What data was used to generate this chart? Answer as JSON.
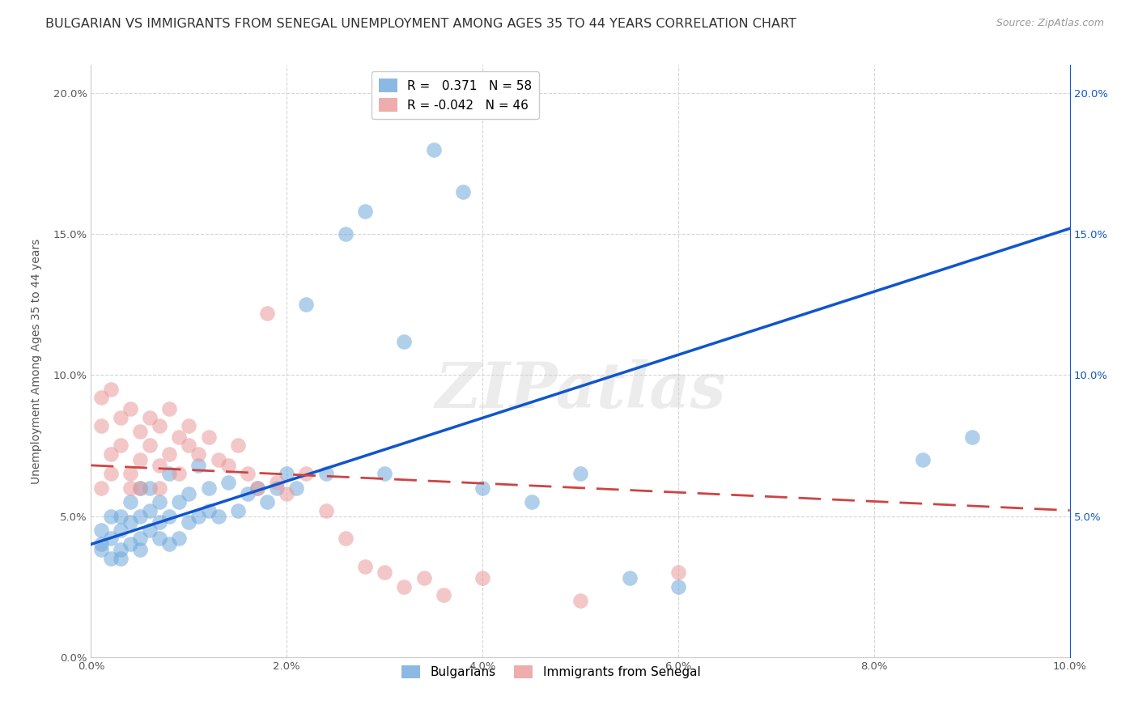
{
  "title": "BULGARIAN VS IMMIGRANTS FROM SENEGAL UNEMPLOYMENT AMONG AGES 35 TO 44 YEARS CORRELATION CHART",
  "source": "Source: ZipAtlas.com",
  "ylabel": "Unemployment Among Ages 35 to 44 years",
  "xlim": [
    0,
    0.1
  ],
  "ylim": [
    0,
    0.21
  ],
  "blue_R": "0.371",
  "blue_N": "58",
  "pink_R": "-0.042",
  "pink_N": "46",
  "legend_labels": [
    "Bulgarians",
    "Immigrants from Senegal"
  ],
  "blue_color": "#6fa8dc",
  "pink_color": "#ea9999",
  "blue_line_color": "#1155cc",
  "pink_line_color": "#cc4444",
  "watermark": "ZIPatlas",
  "blue_scatter_x": [
    0.001,
    0.001,
    0.001,
    0.002,
    0.002,
    0.002,
    0.003,
    0.003,
    0.003,
    0.003,
    0.004,
    0.004,
    0.004,
    0.005,
    0.005,
    0.005,
    0.005,
    0.006,
    0.006,
    0.006,
    0.007,
    0.007,
    0.007,
    0.008,
    0.008,
    0.008,
    0.009,
    0.009,
    0.01,
    0.01,
    0.011,
    0.011,
    0.012,
    0.012,
    0.013,
    0.014,
    0.015,
    0.016,
    0.017,
    0.018,
    0.019,
    0.02,
    0.021,
    0.022,
    0.024,
    0.026,
    0.028,
    0.03,
    0.032,
    0.035,
    0.038,
    0.04,
    0.045,
    0.05,
    0.055,
    0.06,
    0.085,
    0.09
  ],
  "blue_scatter_y": [
    0.04,
    0.038,
    0.045,
    0.035,
    0.042,
    0.05,
    0.038,
    0.045,
    0.05,
    0.035,
    0.04,
    0.048,
    0.055,
    0.042,
    0.038,
    0.05,
    0.06,
    0.045,
    0.052,
    0.06,
    0.042,
    0.048,
    0.055,
    0.04,
    0.05,
    0.065,
    0.042,
    0.055,
    0.048,
    0.058,
    0.05,
    0.068,
    0.052,
    0.06,
    0.05,
    0.062,
    0.052,
    0.058,
    0.06,
    0.055,
    0.06,
    0.065,
    0.06,
    0.125,
    0.065,
    0.15,
    0.158,
    0.065,
    0.112,
    0.18,
    0.165,
    0.06,
    0.055,
    0.065,
    0.028,
    0.025,
    0.07,
    0.078
  ],
  "pink_scatter_x": [
    0.001,
    0.001,
    0.001,
    0.002,
    0.002,
    0.002,
    0.003,
    0.003,
    0.004,
    0.004,
    0.004,
    0.005,
    0.005,
    0.005,
    0.006,
    0.006,
    0.007,
    0.007,
    0.007,
    0.008,
    0.008,
    0.009,
    0.009,
    0.01,
    0.01,
    0.011,
    0.012,
    0.013,
    0.014,
    0.015,
    0.016,
    0.017,
    0.018,
    0.019,
    0.02,
    0.022,
    0.024,
    0.026,
    0.028,
    0.03,
    0.032,
    0.034,
    0.036,
    0.04,
    0.05,
    0.06
  ],
  "pink_scatter_y": [
    0.082,
    0.06,
    0.092,
    0.072,
    0.095,
    0.065,
    0.085,
    0.075,
    0.088,
    0.065,
    0.06,
    0.08,
    0.07,
    0.06,
    0.085,
    0.075,
    0.082,
    0.068,
    0.06,
    0.088,
    0.072,
    0.078,
    0.065,
    0.082,
    0.075,
    0.072,
    0.078,
    0.07,
    0.068,
    0.075,
    0.065,
    0.06,
    0.122,
    0.062,
    0.058,
    0.065,
    0.052,
    0.042,
    0.032,
    0.03,
    0.025,
    0.028,
    0.022,
    0.028,
    0.02,
    0.03
  ],
  "blue_line_x": [
    0.0,
    0.1
  ],
  "blue_line_y": [
    0.04,
    0.152
  ],
  "pink_line_x": [
    0.0,
    0.1
  ],
  "pink_line_y": [
    0.068,
    0.052
  ],
  "background_color": "#ffffff",
  "grid_color": "#cccccc",
  "title_fontsize": 11.5,
  "axis_label_fontsize": 10,
  "tick_fontsize": 9.5
}
